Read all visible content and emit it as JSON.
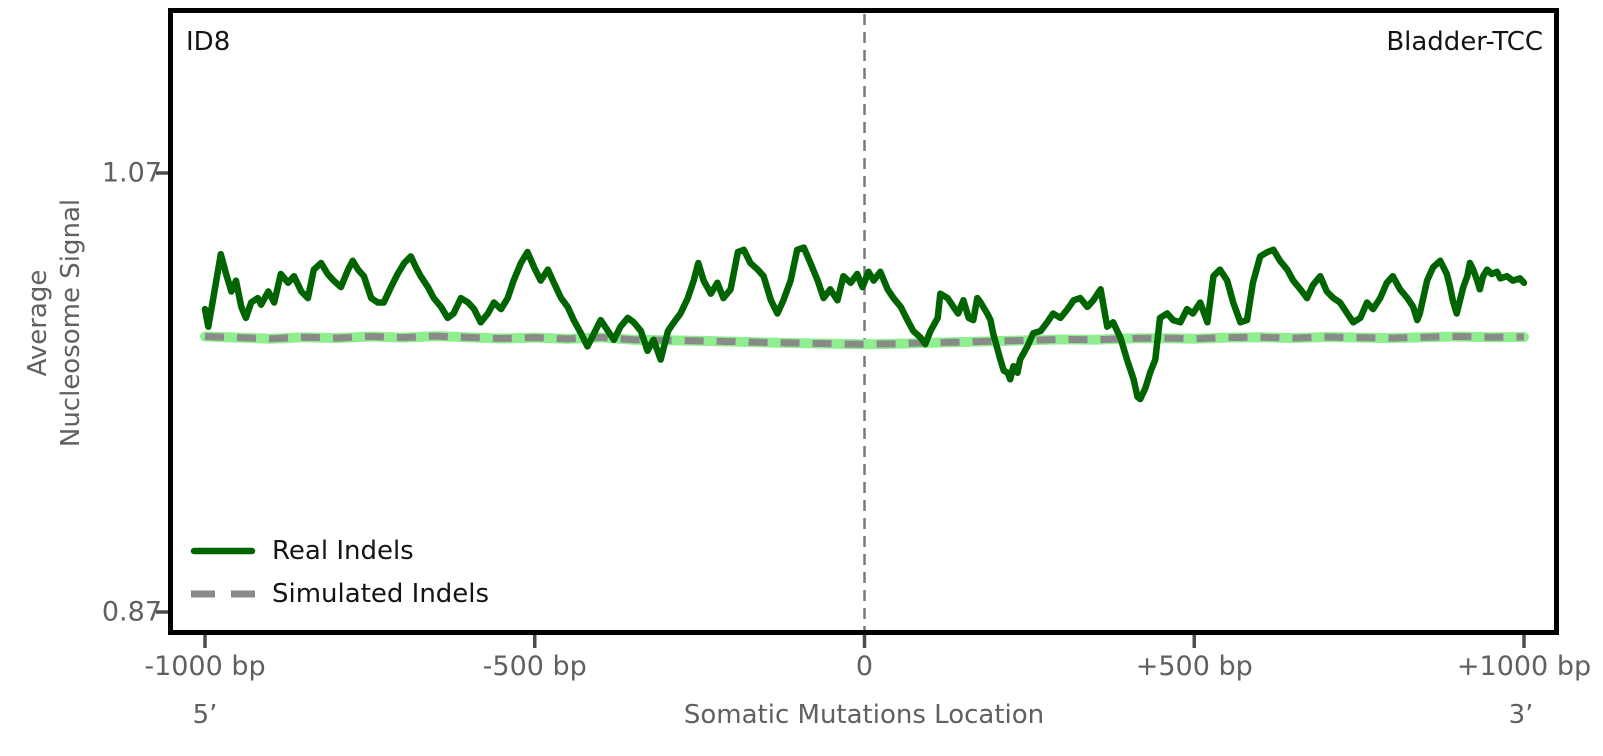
{
  "chart_data": {
    "type": "line",
    "title_left": "ID8",
    "title_right": "Bladder-TCC",
    "xlabel": "Somatic Mutations Location",
    "ylabel": "Average Nucleosome Signal",
    "ylabel_lines": [
      "Average",
      "Nucleosome Signal"
    ],
    "end_labels": {
      "left": "5’",
      "right": "3’"
    },
    "xlim": [
      -1000,
      1000
    ],
    "ylim": [
      0.87,
      1.07
    ],
    "x_ticks": [
      {
        "value": -1000,
        "label": "-1000 bp"
      },
      {
        "value": -500,
        "label": "-500 bp"
      },
      {
        "value": 0,
        "label": "0"
      },
      {
        "value": 500,
        "label": "+500 bp"
      },
      {
        "value": 1000,
        "label": "+1000 bp"
      }
    ],
    "y_ticks": [
      {
        "value": 1.07,
        "label": "1.07"
      },
      {
        "value": 0.87,
        "label": "0.87"
      }
    ],
    "vline_x": 0,
    "grid": false,
    "legend_position": "lower left",
    "series": [
      {
        "name": "Real Indels",
        "style": "solid",
        "color": "#006400",
        "points": [
          [
            -1000,
            1.008
          ],
          [
            -995,
            1.0
          ],
          [
            -988,
            1.012
          ],
          [
            -980,
            1.026
          ],
          [
            -976,
            1.033
          ],
          [
            -968,
            1.024
          ],
          [
            -960,
            1.016
          ],
          [
            -953,
            1.021
          ],
          [
            -945,
            1.009
          ],
          [
            -938,
            1.004
          ],
          [
            -930,
            1.011
          ],
          [
            -920,
            1.013
          ],
          [
            -915,
            1.01
          ],
          [
            -904,
            1.016
          ],
          [
            -895,
            1.011
          ],
          [
            -885,
            1.024
          ],
          [
            -874,
            1.02
          ],
          [
            -865,
            1.023
          ],
          [
            -854,
            1.016
          ],
          [
            -844,
            1.013
          ],
          [
            -835,
            1.026
          ],
          [
            -824,
            1.029
          ],
          [
            -814,
            1.024
          ],
          [
            -805,
            1.021
          ],
          [
            -794,
            1.018
          ],
          [
            -783,
            1.026
          ],
          [
            -776,
            1.03
          ],
          [
            -768,
            1.026
          ],
          [
            -759,
            1.023
          ],
          [
            -748,
            1.013
          ],
          [
            -738,
            1.011
          ],
          [
            -729,
            1.011
          ],
          [
            -718,
            1.018
          ],
          [
            -708,
            1.024
          ],
          [
            -698,
            1.029
          ],
          [
            -688,
            1.032
          ],
          [
            -680,
            1.027
          ],
          [
            -673,
            1.023
          ],
          [
            -662,
            1.018
          ],
          [
            -653,
            1.013
          ],
          [
            -642,
            1.009
          ],
          [
            -632,
            1.004
          ],
          [
            -623,
            1.006
          ],
          [
            -612,
            1.013
          ],
          [
            -601,
            1.011
          ],
          [
            -592,
            1.008
          ],
          [
            -582,
            1.002
          ],
          [
            -571,
            1.006
          ],
          [
            -562,
            1.011
          ],
          [
            -551,
            1.008
          ],
          [
            -541,
            1.013
          ],
          [
            -532,
            1.021
          ],
          [
            -521,
            1.029
          ],
          [
            -511,
            1.034
          ],
          [
            -501,
            1.027
          ],
          [
            -491,
            1.021
          ],
          [
            -480,
            1.026
          ],
          [
            -471,
            1.02
          ],
          [
            -460,
            1.013
          ],
          [
            -450,
            1.009
          ],
          [
            -441,
            1.003
          ],
          [
            -430,
            0.997
          ],
          [
            -420,
            0.991
          ],
          [
            -410,
            0.997
          ],
          [
            -400,
            1.003
          ],
          [
            -389,
            0.998
          ],
          [
            -380,
            0.994
          ],
          [
            -370,
            1.0
          ],
          [
            -359,
            1.004
          ],
          [
            -350,
            1.002
          ],
          [
            -339,
            0.998
          ],
          [
            -329,
            0.989
          ],
          [
            -320,
            0.994
          ],
          [
            -309,
            0.985
          ],
          [
            -298,
            0.998
          ],
          [
            -289,
            1.002
          ],
          [
            -279,
            1.006
          ],
          [
            -268,
            1.013
          ],
          [
            -259,
            1.021
          ],
          [
            -252,
            1.029
          ],
          [
            -244,
            1.021
          ],
          [
            -233,
            1.015
          ],
          [
            -223,
            1.02
          ],
          [
            -214,
            1.013
          ],
          [
            -203,
            1.017
          ],
          [
            -192,
            1.034
          ],
          [
            -183,
            1.035
          ],
          [
            -173,
            1.029
          ],
          [
            -162,
            1.026
          ],
          [
            -153,
            1.023
          ],
          [
            -142,
            1.012
          ],
          [
            -132,
            1.006
          ],
          [
            -123,
            1.012
          ],
          [
            -112,
            1.021
          ],
          [
            -102,
            1.035
          ],
          [
            -92,
            1.036
          ],
          [
            -82,
            1.029
          ],
          [
            -71,
            1.021
          ],
          [
            -62,
            1.013
          ],
          [
            -52,
            1.017
          ],
          [
            -41,
            1.012
          ],
          [
            -32,
            1.023
          ],
          [
            -21,
            1.02
          ],
          [
            -11,
            1.024
          ],
          [
            -3,
            1.018
          ],
          [
            6,
            1.025
          ],
          [
            14,
            1.021
          ],
          [
            24,
            1.025
          ],
          [
            35,
            1.017
          ],
          [
            44,
            1.013
          ],
          [
            55,
            1.009
          ],
          [
            65,
            1.003
          ],
          [
            74,
            0.998
          ],
          [
            85,
            0.995
          ],
          [
            92,
            0.992
          ],
          [
            100,
            0.998
          ],
          [
            111,
            1.004
          ],
          [
            115,
            1.015
          ],
          [
            126,
            1.013
          ],
          [
            135,
            1.009
          ],
          [
            142,
            1.006
          ],
          [
            150,
            1.012
          ],
          [
            158,
            1.004
          ],
          [
            165,
            1.003
          ],
          [
            171,
            1.013
          ],
          [
            176,
            1.011
          ],
          [
            186,
            1.006
          ],
          [
            191,
            1.003
          ],
          [
            195,
            0.997
          ],
          [
            206,
            0.985
          ],
          [
            211,
            0.98
          ],
          [
            217,
            0.979
          ],
          [
            221,
            0.976
          ],
          [
            226,
            0.982
          ],
          [
            232,
            0.979
          ],
          [
            236,
            0.985
          ],
          [
            247,
            0.991
          ],
          [
            256,
            0.997
          ],
          [
            267,
            0.998
          ],
          [
            277,
            1.002
          ],
          [
            286,
            1.006
          ],
          [
            297,
            1.004
          ],
          [
            308,
            1.008
          ],
          [
            317,
            1.012
          ],
          [
            327,
            1.013
          ],
          [
            338,
            1.009
          ],
          [
            347,
            1.012
          ],
          [
            358,
            1.017
          ],
          [
            368,
            1.0
          ],
          [
            377,
            1.002
          ],
          [
            388,
            0.995
          ],
          [
            398,
            0.985
          ],
          [
            408,
            0.976
          ],
          [
            414,
            0.968
          ],
          [
            418,
            0.967
          ],
          [
            426,
            0.972
          ],
          [
            433,
            0.979
          ],
          [
            441,
            0.985
          ],
          [
            448,
            1.004
          ],
          [
            459,
            1.006
          ],
          [
            468,
            1.003
          ],
          [
            479,
            1.002
          ],
          [
            489,
            1.008
          ],
          [
            498,
            1.006
          ],
          [
            509,
            1.011
          ],
          [
            520,
            1.002
          ],
          [
            529,
            1.023
          ],
          [
            539,
            1.026
          ],
          [
            550,
            1.021
          ],
          [
            559,
            1.011
          ],
          [
            570,
            1.002
          ],
          [
            580,
            1.003
          ],
          [
            589,
            1.02
          ],
          [
            600,
            1.032
          ],
          [
            611,
            1.034
          ],
          [
            620,
            1.035
          ],
          [
            630,
            1.03
          ],
          [
            641,
            1.026
          ],
          [
            650,
            1.021
          ],
          [
            661,
            1.017
          ],
          [
            671,
            1.013
          ],
          [
            680,
            1.019
          ],
          [
            691,
            1.023
          ],
          [
            701,
            1.016
          ],
          [
            711,
            1.013
          ],
          [
            721,
            1.011
          ],
          [
            732,
            1.006
          ],
          [
            741,
            1.002
          ],
          [
            752,
            1.004
          ],
          [
            762,
            1.011
          ],
          [
            771,
            1.008
          ],
          [
            782,
            1.013
          ],
          [
            792,
            1.02
          ],
          [
            801,
            1.023
          ],
          [
            812,
            1.017
          ],
          [
            823,
            1.013
          ],
          [
            832,
            1.009
          ],
          [
            838,
            1.003
          ],
          [
            842,
            1.006
          ],
          [
            853,
            1.021
          ],
          [
            862,
            1.027
          ],
          [
            873,
            1.03
          ],
          [
            883,
            1.024
          ],
          [
            888,
            1.018
          ],
          [
            892,
            1.012
          ],
          [
            898,
            1.006
          ],
          [
            903,
            1.012
          ],
          [
            908,
            1.018
          ],
          [
            914,
            1.023
          ],
          [
            918,
            1.029
          ],
          [
            923,
            1.026
          ],
          [
            929,
            1.021
          ],
          [
            933,
            1.017
          ],
          [
            938,
            1.023
          ],
          [
            944,
            1.026
          ],
          [
            951,
            1.024
          ],
          [
            959,
            1.025
          ],
          [
            964,
            1.022
          ],
          [
            974,
            1.023
          ],
          [
            983,
            1.021
          ],
          [
            994,
            1.022
          ],
          [
            1000,
            1.02
          ]
        ]
      },
      {
        "name": "Simulated Indels",
        "style": "dashed",
        "color": "#8a8a8a",
        "underlay_color": "#90ee90",
        "points": [
          [
            -1000,
            0.9955
          ],
          [
            -950,
            0.995
          ],
          [
            -900,
            0.9945
          ],
          [
            -850,
            0.9952
          ],
          [
            -800,
            0.9948
          ],
          [
            -750,
            0.9955
          ],
          [
            -700,
            0.995
          ],
          [
            -650,
            0.9957
          ],
          [
            -600,
            0.9951
          ],
          [
            -550,
            0.9946
          ],
          [
            -500,
            0.995
          ],
          [
            -450,
            0.9944
          ],
          [
            -400,
            0.9951
          ],
          [
            -350,
            0.994
          ],
          [
            -300,
            0.9938
          ],
          [
            -250,
            0.9935
          ],
          [
            -200,
            0.9932
          ],
          [
            -150,
            0.9928
          ],
          [
            -100,
            0.9925
          ],
          [
            -50,
            0.9922
          ],
          [
            0,
            0.992
          ],
          [
            50,
            0.9922
          ],
          [
            100,
            0.9927
          ],
          [
            150,
            0.993
          ],
          [
            200,
            0.9934
          ],
          [
            250,
            0.9938
          ],
          [
            300,
            0.9942
          ],
          [
            350,
            0.994
          ],
          [
            400,
            0.9946
          ],
          [
            450,
            0.9948
          ],
          [
            500,
            0.9945
          ],
          [
            550,
            0.995
          ],
          [
            600,
            0.9952
          ],
          [
            650,
            0.9948
          ],
          [
            700,
            0.9953
          ],
          [
            750,
            0.995
          ],
          [
            800,
            0.9948
          ],
          [
            850,
            0.9952
          ],
          [
            900,
            0.9955
          ],
          [
            950,
            0.9952
          ],
          [
            1000,
            0.9953
          ]
        ]
      }
    ]
  },
  "colors": {
    "real_indels": "#006400",
    "simulated_indels": "#8a8a8a",
    "simulated_underlay": "#90ee90",
    "spine": "#000000",
    "tick_mark": "#4d4d4d",
    "muted_text": "#606060",
    "title_text": "#141414",
    "vline": "#7a7a7a"
  }
}
